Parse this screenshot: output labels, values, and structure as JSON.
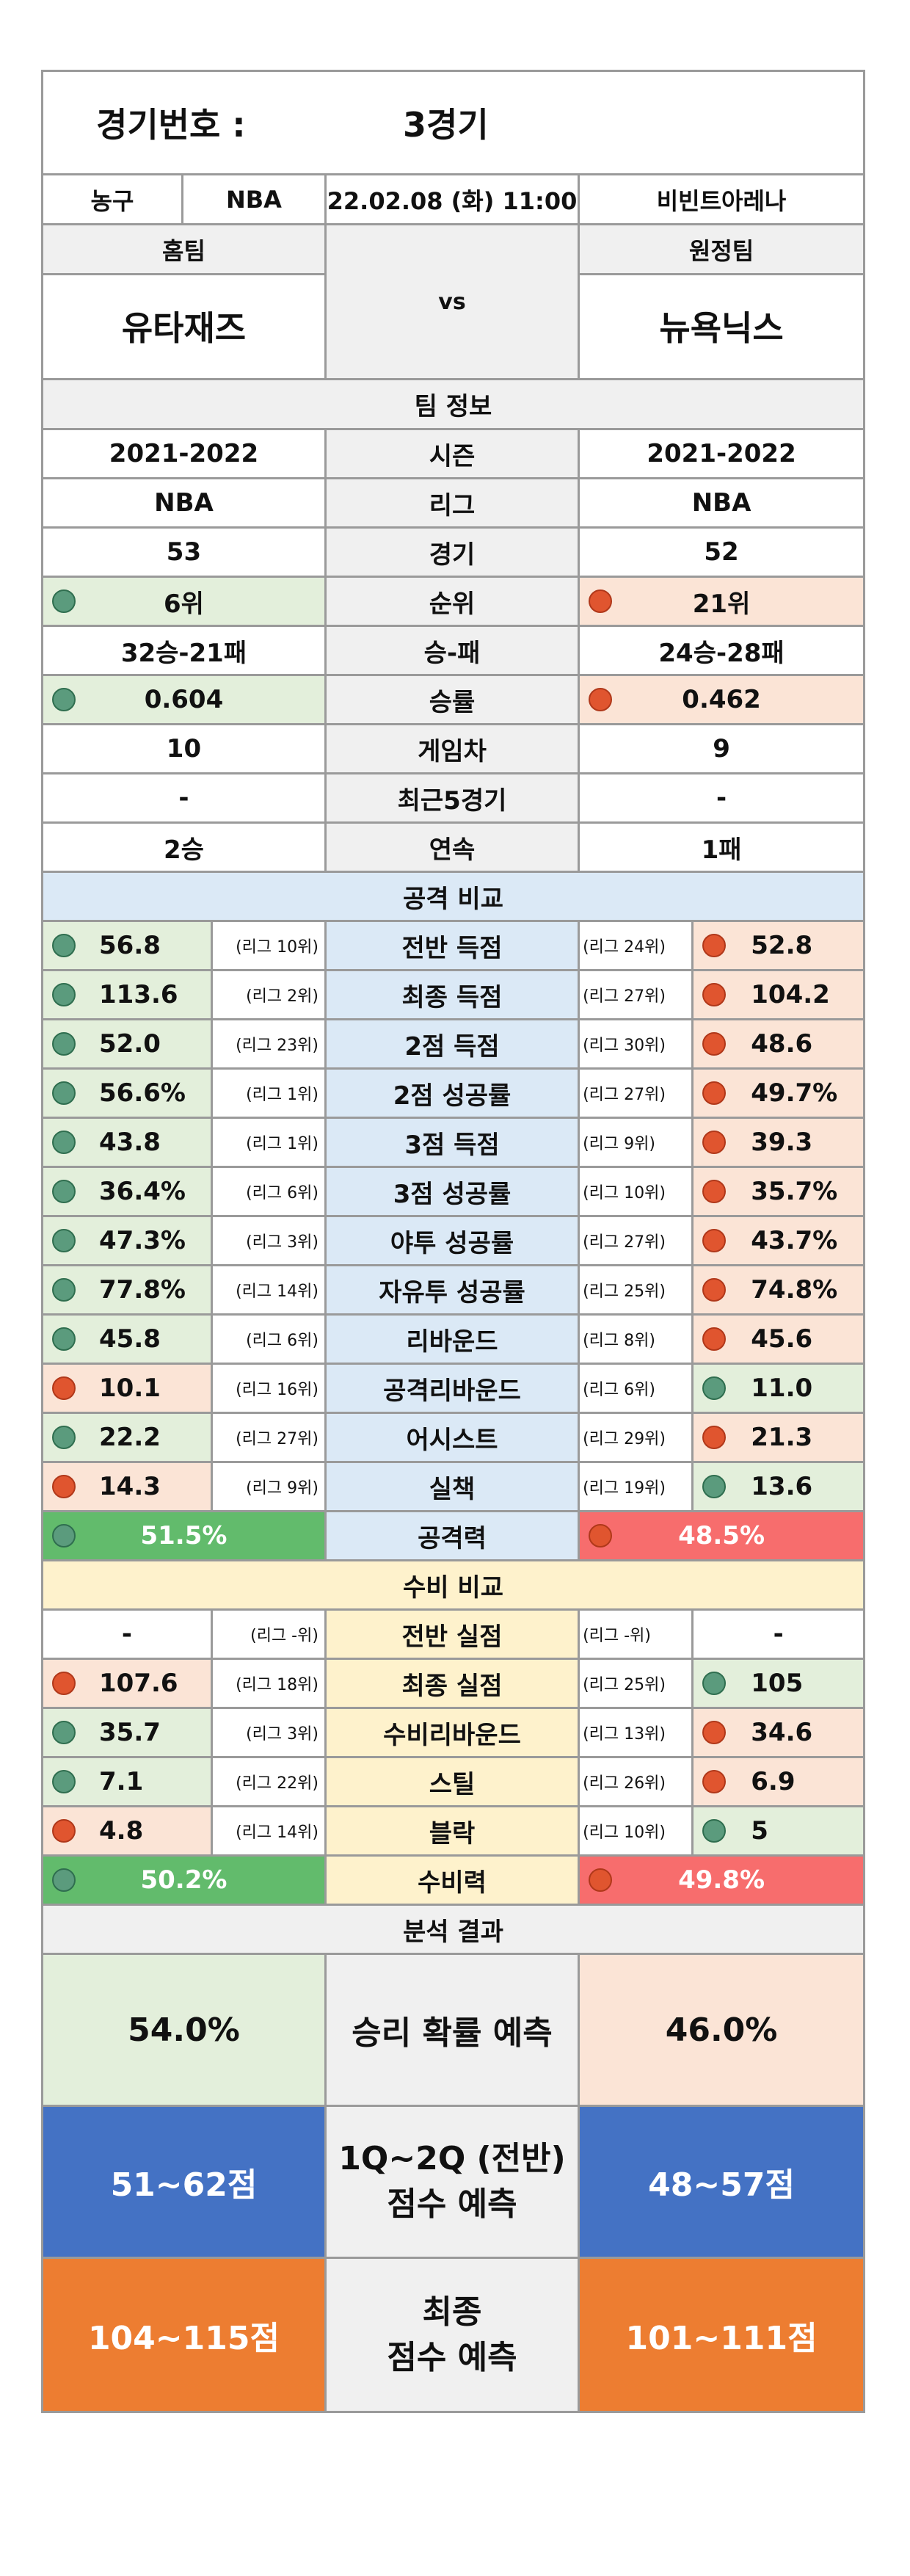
{
  "header": {
    "label": "경기번호 :",
    "number": "3경기"
  },
  "info": {
    "sport": "농구",
    "league": "NBA",
    "datetime": "22.02.08 (화) 11:00",
    "venue": "비빈트아레나"
  },
  "teams": {
    "home_label": "홈팀",
    "away_label": "원정팀",
    "home": "유타재즈",
    "away": "뉴욕닉스",
    "vs": "vs"
  },
  "team_info": {
    "title": "팀 정보",
    "rows": [
      {
        "label": "시즌",
        "home": "2021-2022",
        "away": "2021-2022"
      },
      {
        "label": "리그",
        "home": "NBA",
        "away": "NBA"
      },
      {
        "label": "경기",
        "home": "53",
        "away": "52"
      },
      {
        "label": "순위",
        "home": "6위",
        "away": "21위"
      },
      {
        "label": "승-패",
        "home": "32승-21패",
        "away": "24승-28패"
      },
      {
        "label": "승률",
        "home": "0.604",
        "away": "0.462"
      },
      {
        "label": "게임차",
        "home": "10",
        "away": "9"
      },
      {
        "label": "최근5경기",
        "home": "-",
        "away": "-"
      },
      {
        "label": "연속",
        "home": "2승",
        "away": "1패"
      }
    ]
  },
  "attack": {
    "title": "공격 비교",
    "rows": [
      {
        "label": "전반 득점",
        "home": "56.8",
        "home_rank": "(리그 10위)",
        "away": "52.8",
        "away_rank": "(리그 24위)"
      },
      {
        "label": "최종 득점",
        "home": "113.6",
        "home_rank": "(리그 2위)",
        "away": "104.2",
        "away_rank": "(리그 27위)"
      },
      {
        "label": "2점 득점",
        "home": "52.0",
        "home_rank": "(리그 23위)",
        "away": "48.6",
        "away_rank": "(리그 30위)"
      },
      {
        "label": "2점 성공률",
        "home": "56.6%",
        "home_rank": "(리그 1위)",
        "away": "49.7%",
        "away_rank": "(리그 27위)"
      },
      {
        "label": "3점 득점",
        "home": "43.8",
        "home_rank": "(리그 1위)",
        "away": "39.3",
        "away_rank": "(리그 9위)"
      },
      {
        "label": "3점 성공률",
        "home": "36.4%",
        "home_rank": "(리그 6위)",
        "away": "35.7%",
        "away_rank": "(리그 10위)"
      },
      {
        "label": "야투 성공률",
        "home": "47.3%",
        "home_rank": "(리그 3위)",
        "away": "43.7%",
        "away_rank": "(리그 27위)"
      },
      {
        "label": "자유투 성공률",
        "home": "77.8%",
        "home_rank": "(리그 14위)",
        "away": "74.8%",
        "away_rank": "(리그 25위)"
      },
      {
        "label": "리바운드",
        "home": "45.8",
        "home_rank": "(리그 6위)",
        "away": "45.6",
        "away_rank": "(리그 8위)"
      },
      {
        "label": "공격리바운드",
        "home": "10.1",
        "home_rank": "(리그 16위)",
        "away": "11.0",
        "away_rank": "(리그 6위)"
      },
      {
        "label": "어시스트",
        "home": "22.2",
        "home_rank": "(리그 27위)",
        "away": "21.3",
        "away_rank": "(리그 29위)"
      },
      {
        "label": "실책",
        "home": "14.3",
        "home_rank": "(리그 9위)",
        "away": "13.6",
        "away_rank": "(리그 19위)"
      }
    ],
    "total": {
      "label": "공격력",
      "home": "51.5%",
      "away": "48.5%"
    }
  },
  "defense": {
    "title": "수비 비교",
    "rows": [
      {
        "label": "전반 실점",
        "home": "-",
        "home_rank": "(리그 -위)",
        "away": "-",
        "away_rank": "(리그 -위)"
      },
      {
        "label": "최종 실점",
        "home": "107.6",
        "home_rank": "(리그 18위)",
        "away": "105",
        "away_rank": "(리그 25위)"
      },
      {
        "label": "수비리바운드",
        "home": "35.7",
        "home_rank": "(리그 3위)",
        "away": "34.6",
        "away_rank": "(리그 13위)"
      },
      {
        "label": "스틸",
        "home": "7.1",
        "home_rank": "(리그 22위)",
        "away": "6.9",
        "away_rank": "(리그 26위)"
      },
      {
        "label": "블락",
        "home": "4.8",
        "home_rank": "(리그 14위)",
        "away": "5",
        "away_rank": "(리그 10위)"
      }
    ],
    "total": {
      "label": "수비력",
      "home": "50.2%",
      "away": "49.8%"
    }
  },
  "analysis": {
    "title": "분석 결과",
    "win_label": "승리 확률 예측",
    "win_home": "54.0%",
    "win_away": "46.0%",
    "half_label_1": "1Q~2Q (전반)",
    "half_label_2": "점수 예측",
    "half_home": "51~62점",
    "half_away": "48~57점",
    "final_label_1": "최종",
    "final_label_2": "점수 예측",
    "final_home": "104~115점",
    "final_away": "101~111점"
  }
}
